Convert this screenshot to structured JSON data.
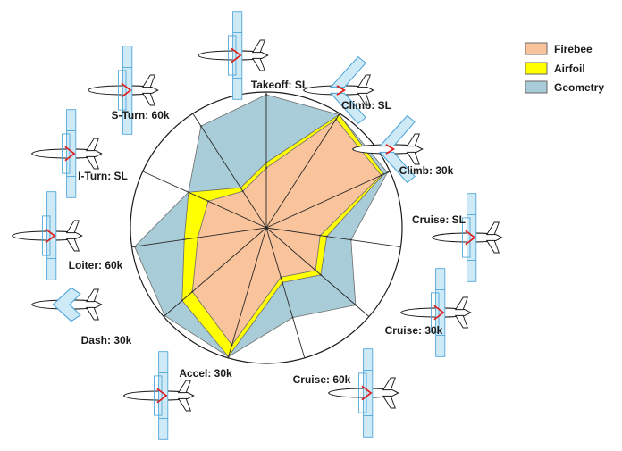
{
  "chart_data": {
    "type": "radar",
    "title": "",
    "categories": [
      "Takeoff: SL",
      "Climb: SL",
      "Climb: 30k",
      "Cruise: SL",
      "Cruise: 30k",
      "Cruise: 60k",
      "Accel: 30k",
      "Dash: 30k",
      "Loiter: 60k",
      "I-Turn: SL",
      "S-Turn: 60k"
    ],
    "rlim": [
      0,
      1
    ],
    "grid": false,
    "legend_position": "top-right",
    "series": [
      {
        "name": "Geometry",
        "color": "#a9cdd8",
        "values": [
          0.98,
          0.99,
          0.98,
          0.63,
          0.87,
          0.69,
          0.99,
          0.99,
          0.98,
          0.63,
          0.89
        ]
      },
      {
        "name": "Airfoil",
        "color": "#ffff00",
        "values": [
          0.48,
          0.99,
          0.95,
          0.45,
          0.53,
          0.42,
          0.99,
          0.82,
          0.61,
          0.63,
          0.35
        ]
      },
      {
        "name": "Firebee",
        "color": "#f9c49b",
        "values": [
          0.44,
          0.95,
          0.93,
          0.4,
          0.48,
          0.38,
          0.9,
          0.72,
          0.51,
          0.47,
          0.32
        ]
      }
    ],
    "legend": [
      "Firebee",
      "Airfoil",
      "Geometry"
    ]
  },
  "icons": [
    "aircraft-icon-takeoff-sl",
    "aircraft-icon-climb-sl",
    "aircraft-icon-climb-30k",
    "aircraft-icon-cruise-sl",
    "aircraft-icon-cruise-30k",
    "aircraft-icon-cruise-60k",
    "aircraft-icon-accel-30k",
    "aircraft-icon-dash-30k",
    "aircraft-icon-loiter-60k",
    "aircraft-icon-i-turn-sl",
    "aircraft-icon-s-turn-60k"
  ]
}
